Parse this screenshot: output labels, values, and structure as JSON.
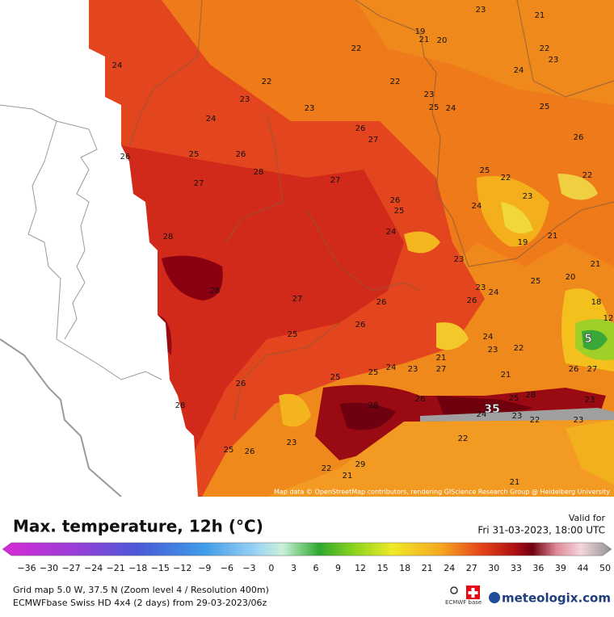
{
  "map": {
    "attribution": "Map data © OpenStreetMap contributors, rendering GIScience Research Group @ Heidelberg University",
    "labels": [
      "23",
      "21",
      "19",
      "21",
      "20",
      "22",
      "22",
      "23",
      "24",
      "24",
      "22",
      "22",
      "23",
      "23",
      "23",
      "25",
      "24",
      "25",
      "24",
      "26",
      "27",
      "26",
      "26",
      "25",
      "26",
      "28",
      "25",
      "22",
      "22",
      "27",
      "27",
      "23",
      "26",
      "25",
      "24",
      "28",
      "24",
      "21",
      "19",
      "23",
      "21",
      "20",
      "25",
      "23",
      "24",
      "28",
      "26",
      "27",
      "26",
      "18",
      "12",
      "25",
      "26",
      "24",
      "5",
      "23",
      "22",
      "21",
      "24",
      "23",
      "27",
      "25",
      "25",
      "21",
      "26",
      "27",
      "26",
      "26",
      "25",
      "28",
      "35",
      "28",
      "28",
      "24",
      "23",
      "22",
      "23",
      "23",
      "22",
      "23",
      "25",
      "26",
      "22",
      "21",
      "29",
      "21"
    ]
  },
  "footer": {
    "title": "Max. temperature, 12h (°C)",
    "valid_label": "Valid for",
    "valid_time": "Fri 31-03-2023, 18:00 UTC",
    "colorbar_labels": [
      "−36",
      "−30",
      "−27",
      "−24",
      "−21",
      "−18",
      "−15",
      "−12",
      "−9",
      "−6",
      "−3",
      "0",
      "3",
      "6",
      "9",
      "12",
      "15",
      "18",
      "21",
      "24",
      "27",
      "30",
      "33",
      "36",
      "39",
      "44",
      "50"
    ],
    "grid_info": "Grid map 5.0 W, 37.5 N (Zoom level 4 / Resolution 400m)",
    "model_info": "ECMWFbase Swiss HD 4x4 (2 days) from 29-03-2023/06z",
    "logo_small": "ECMWF base",
    "brand": "meteologix.com"
  }
}
